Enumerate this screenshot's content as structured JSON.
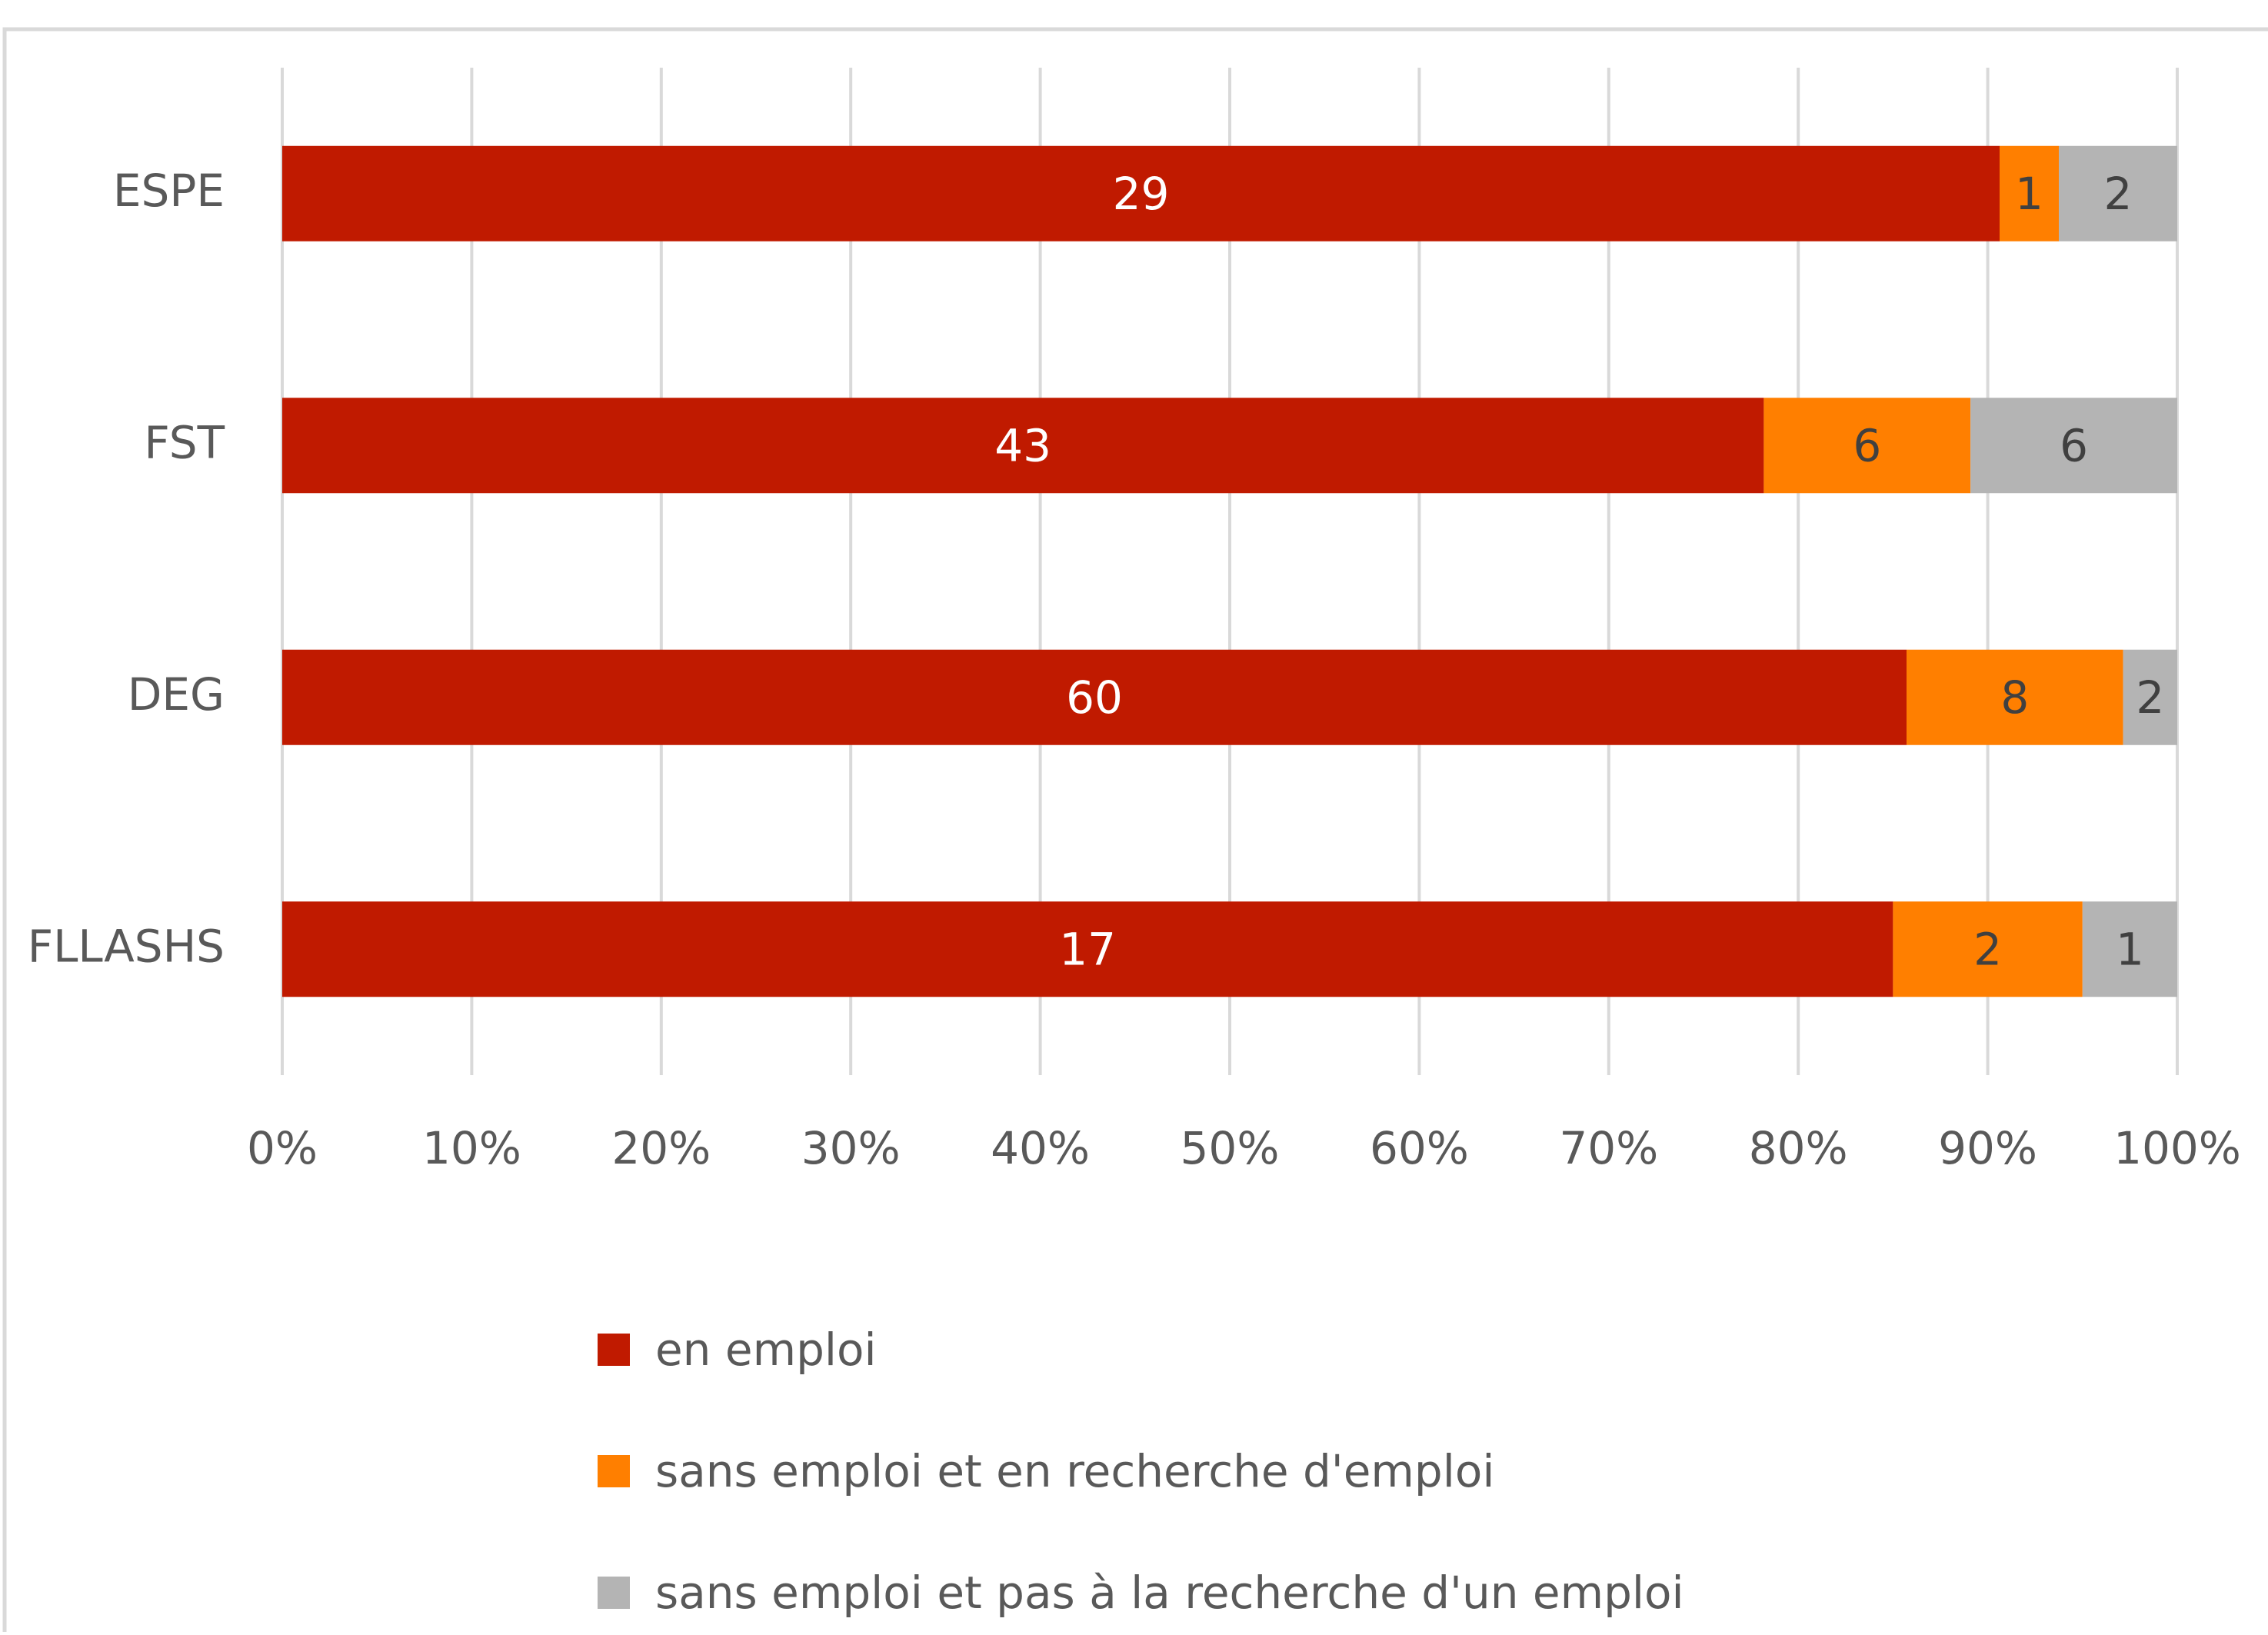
{
  "chart_data": {
    "type": "bar",
    "orientation": "horizontal",
    "stack": "percent",
    "categories": [
      "ESPE",
      "FST",
      "DEG",
      "FLLASHS"
    ],
    "series": [
      {
        "name": "en emploi",
        "color": "#c01a00",
        "values": [
          29,
          43,
          60,
          17
        ]
      },
      {
        "name": "sans emploi et en recherche d'emploi",
        "color": "#ff7f00",
        "values": [
          1,
          6,
          8,
          2
        ]
      },
      {
        "name": "sans emploi et pas à la recherche d'un emploi",
        "color": "#b4b4b4",
        "values": [
          2,
          6,
          2,
          1
        ]
      }
    ],
    "xlim": [
      0,
      100
    ],
    "xticks": [
      {
        "value": 0,
        "label": "0%"
      },
      {
        "value": 10,
        "label": "10%"
      },
      {
        "value": 20,
        "label": "20%"
      },
      {
        "value": 30,
        "label": "30%"
      },
      {
        "value": 40,
        "label": "40%"
      },
      {
        "value": 50,
        "label": "50%"
      },
      {
        "value": 60,
        "label": "60%"
      },
      {
        "value": 70,
        "label": "70%"
      },
      {
        "value": 80,
        "label": "80%"
      },
      {
        "value": 90,
        "label": "90%"
      },
      {
        "value": 100,
        "label": "100%"
      }
    ],
    "grid": true,
    "legend": "bottom"
  }
}
